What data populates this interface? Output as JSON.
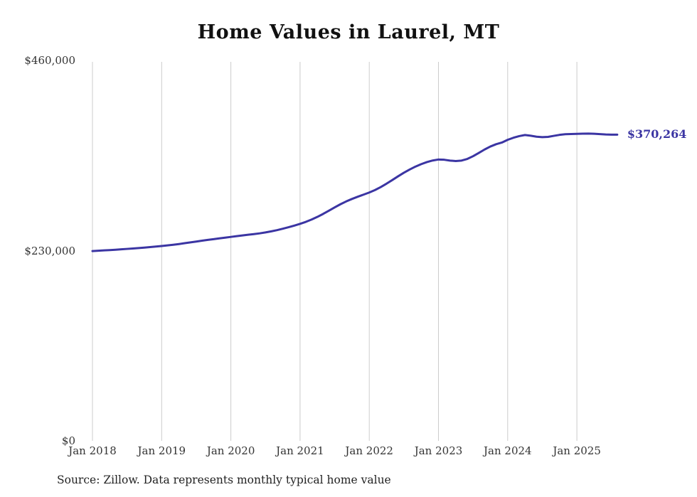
{
  "chart_data": {
    "type": "line",
    "title": "Home Values in Laurel, MT",
    "source_note": "Source: Zillow. Data represents monthly typical home value",
    "end_label": "$370,264",
    "end_value": 370264,
    "line_color": "#3b35a3",
    "grid_color": "#cccccc",
    "ylim": [
      0,
      460000
    ],
    "y_ticks": [
      {
        "value": 460000,
        "label": "$460,000"
      },
      {
        "value": 230000,
        "label": "$230,000"
      },
      {
        "value": 0,
        "label": "$0"
      }
    ],
    "x_tick_labels": [
      "Jan 2018",
      "Jan 2019",
      "Jan 2020",
      "Jan 2021",
      "Jan 2022",
      "Jan 2023",
      "Jan 2024",
      "Jan 2025"
    ],
    "months_per_tick": 12,
    "x_start": "Jan 2018",
    "x_end": "Aug 2025",
    "series": [
      {
        "name": "Monthly typical home value",
        "values": [
          229500,
          229900,
          230300,
          230700,
          231100,
          231600,
          232100,
          232600,
          233100,
          233700,
          234300,
          234900,
          235600,
          236300,
          237100,
          238000,
          239000,
          240000,
          241000,
          242000,
          243000,
          243900,
          244800,
          245700,
          246600,
          247500,
          248400,
          249200,
          250000,
          250900,
          252000,
          253300,
          254800,
          256500,
          258300,
          260300,
          262400,
          264800,
          267600,
          270800,
          274400,
          278300,
          282300,
          286100,
          289500,
          292500,
          295200,
          297700,
          300300,
          303300,
          306900,
          311000,
          315400,
          319900,
          324200,
          328100,
          331600,
          334600,
          337100,
          339000,
          340200,
          339900,
          338900,
          338300,
          338900,
          340900,
          344200,
          348200,
          352300,
          355900,
          358700,
          360700,
          364000,
          366500,
          368500,
          369800,
          369000,
          367800,
          367200,
          367600,
          368800,
          370000,
          370800,
          371000,
          371200,
          371400,
          371500,
          371300,
          370900,
          370500,
          370300,
          370264
        ]
      }
    ]
  }
}
